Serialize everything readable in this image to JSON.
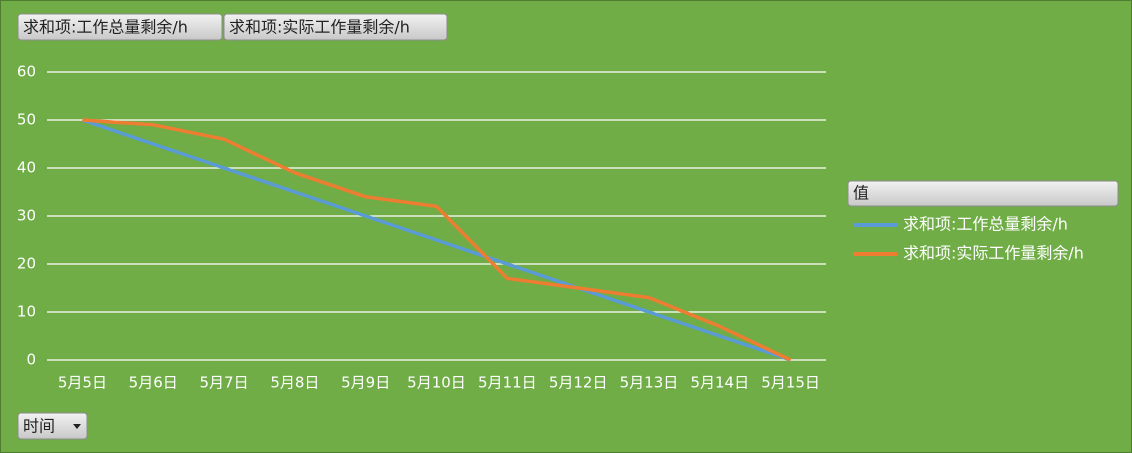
{
  "chart_data": {
    "type": "line",
    "categories": [
      "5月5日",
      "5月6日",
      "5月7日",
      "5月8日",
      "5月9日",
      "5月10日",
      "5月11日",
      "5月12日",
      "5月13日",
      "5月14日",
      "5月15日"
    ],
    "series": [
      {
        "name": "求和项:工作总量剩余/h",
        "color": "#5b9bd5",
        "values": [
          50,
          45,
          40,
          35,
          30,
          25,
          20,
          15,
          10,
          5,
          0
        ]
      },
      {
        "name": "求和项:实际工作量剩余/h",
        "color": "#ed7d31",
        "values": [
          50,
          49,
          46,
          39,
          34,
          32,
          17,
          15,
          13,
          7,
          0
        ]
      }
    ],
    "ylim": [
      0,
      60
    ],
    "yticks": [
      0,
      10,
      20,
      30,
      40,
      50,
      60
    ],
    "grid": true,
    "legend_title": "值",
    "axis_field": "时间",
    "legend": "right"
  }
}
